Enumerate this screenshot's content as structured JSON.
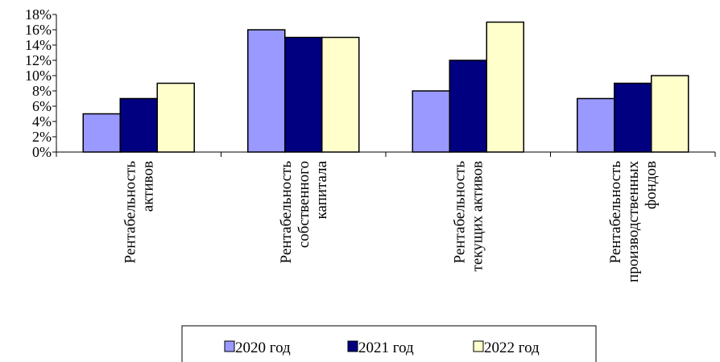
{
  "chart_data": {
    "type": "bar",
    "categories": [
      [
        "Рентабельность",
        "активов"
      ],
      [
        "Рентабельность",
        "собственного",
        "капитала"
      ],
      [
        "Рентабельность",
        "текущих активов"
      ],
      [
        "Рентабельность",
        "производственных",
        "фондов"
      ]
    ],
    "series": [
      {
        "name": "2020 год",
        "color": "#9999ff",
        "values": [
          5,
          16,
          8,
          7
        ]
      },
      {
        "name": "2021 год",
        "color": "#000080",
        "values": [
          7,
          15,
          12,
          9
        ]
      },
      {
        "name": "2022 год",
        "color": "#ffffcc",
        "values": [
          9,
          15,
          17,
          10
        ]
      }
    ],
    "y_ticks": [
      "0%",
      "2%",
      "4%",
      "6%",
      "8%",
      "10%",
      "12%",
      "14%",
      "16%",
      "18%"
    ],
    "ylim": [
      0,
      18
    ],
    "y_unit": "%",
    "grid": false,
    "legend_position": "bottom"
  }
}
